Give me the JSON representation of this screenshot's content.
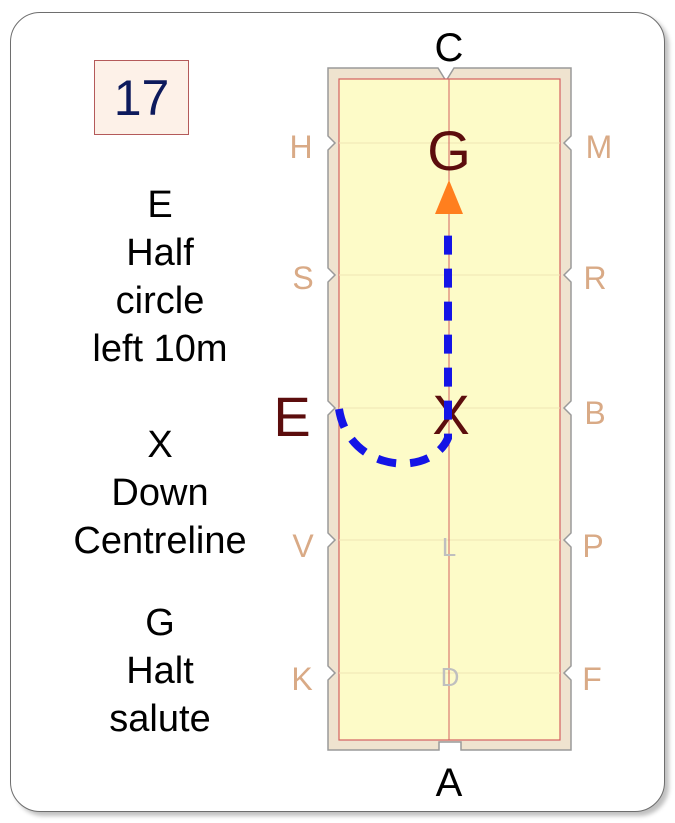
{
  "test_number": "17",
  "instructions": [
    {
      "marker": "E",
      "lines": [
        "Half",
        "circle",
        "left 10m"
      ]
    },
    {
      "marker": "X",
      "lines": [
        "Down",
        "Centreline"
      ]
    },
    {
      "marker": "G",
      "lines": [
        "Halt",
        "salute"
      ]
    }
  ],
  "arena": {
    "end_letters": {
      "top": "C",
      "bottom": "A"
    },
    "left_letters": [
      "H",
      "S",
      "E",
      "V",
      "K"
    ],
    "right_letters": [
      "M",
      "R",
      "B",
      "P",
      "F"
    ],
    "centre_letters": [
      "G",
      "X",
      "L",
      "D"
    ],
    "highlighted_letters": [
      "G",
      "X",
      "E"
    ],
    "colors": {
      "fence": "#efe3cf",
      "surface": "#fdfbc8",
      "lines": "#d46060",
      "side_letters": "#d9aa86",
      "highlight_letters": "#5c0d0d",
      "centre_faint_letters": "#bfbfbf",
      "path": "#1414e6",
      "arrow": "#ff7f1e"
    }
  }
}
